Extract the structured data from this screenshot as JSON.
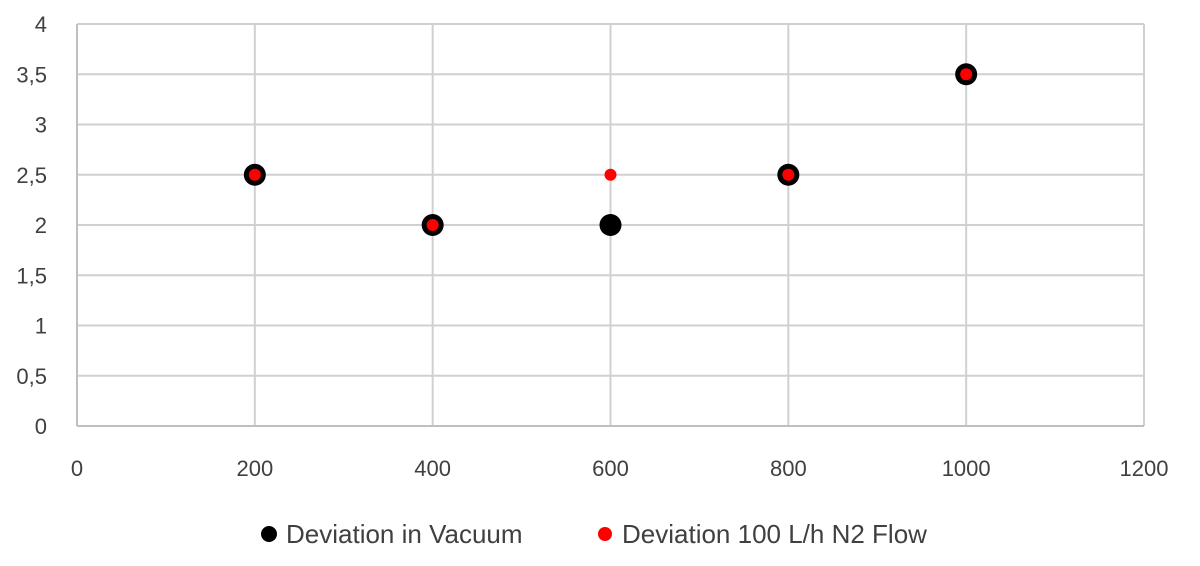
{
  "chart_data": {
    "type": "scatter",
    "title": "",
    "xlabel": "",
    "ylabel": "",
    "xlim": [
      0,
      1200
    ],
    "ylim": [
      0,
      4
    ],
    "x_ticks": [
      0,
      200,
      400,
      600,
      800,
      1000,
      1200
    ],
    "y_ticks": [
      0,
      0.5,
      1,
      1.5,
      2,
      2.5,
      3,
      3.5,
      4
    ],
    "x_tick_labels": [
      "0",
      "200",
      "400",
      "600",
      "800",
      "1000",
      "1200"
    ],
    "y_tick_labels": [
      "0",
      "0,5",
      "1",
      "1,5",
      "2",
      "2,5",
      "3",
      "3,5",
      "4"
    ],
    "grid": true,
    "legend_position": "bottom",
    "series": [
      {
        "name": "Deviation in Vacuum",
        "color": "#000000",
        "marker": "large-circle",
        "points": [
          {
            "x": 200,
            "y": 2.5
          },
          {
            "x": 400,
            "y": 2.0
          },
          {
            "x": 600,
            "y": 2.0
          },
          {
            "x": 800,
            "y": 2.5
          },
          {
            "x": 1000,
            "y": 3.5
          }
        ]
      },
      {
        "name": "Deviation 100 L/h N2 Flow",
        "color": "#ff0000",
        "marker": "small-circle",
        "points": [
          {
            "x": 200,
            "y": 2.5
          },
          {
            "x": 400,
            "y": 2.0
          },
          {
            "x": 600,
            "y": 2.5
          },
          {
            "x": 800,
            "y": 2.5
          },
          {
            "x": 1000,
            "y": 3.5
          }
        ]
      }
    ]
  }
}
